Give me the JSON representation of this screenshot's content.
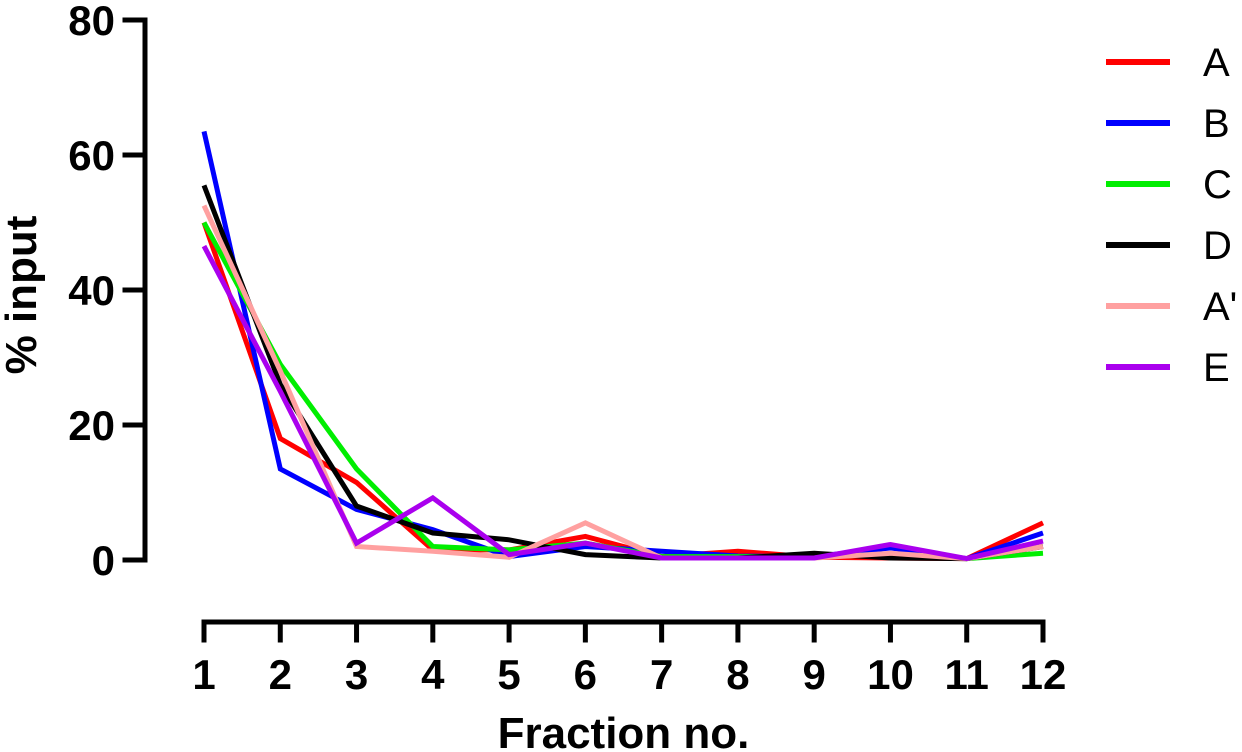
{
  "chart_data": {
    "type": "line",
    "title": "",
    "xlabel": "Fraction no.",
    "ylabel": "% input",
    "x": [
      1,
      2,
      3,
      4,
      5,
      6,
      7,
      8,
      9,
      10,
      11,
      12
    ],
    "x_tick_labels": [
      "1",
      "2",
      "3",
      "4",
      "5",
      "6",
      "7",
      "8",
      "9",
      "10",
      "11",
      "12"
    ],
    "ylim": [
      0,
      80
    ],
    "y_ticks": [
      0,
      20,
      40,
      60,
      80
    ],
    "grid": false,
    "legend_position": "right",
    "series": [
      {
        "name": "A",
        "color": "#ff0000",
        "values": [
          50,
          18,
          11.5,
          1.5,
          1.5,
          3.5,
          0.5,
          1.3,
          0.4,
          0.3,
          0.2,
          5.5
        ]
      },
      {
        "name": "B",
        "color": "#0000ff",
        "values": [
          63.5,
          13.5,
          7.5,
          4.5,
          0.5,
          2,
          1.3,
          0.6,
          0.5,
          1.8,
          0.2,
          4
        ]
      },
      {
        "name": "C",
        "color": "#00ee00",
        "values": [
          50,
          29,
          13.5,
          2,
          1.5,
          2.5,
          0.5,
          0.5,
          0.5,
          0.8,
          0.2,
          1
        ]
      },
      {
        "name": "D",
        "color": "#000000",
        "values": [
          55.5,
          26,
          8,
          4,
          3,
          0.8,
          0.3,
          0.3,
          1,
          0.3,
          0.2,
          2
        ]
      },
      {
        "name": "A'",
        "color": "#ffa0a0",
        "values": [
          52.5,
          28,
          2,
          1.3,
          0.4,
          5.5,
          0.3,
          0.3,
          0.3,
          1,
          0.2,
          2
        ]
      },
      {
        "name": "E",
        "color": "#aa00ee",
        "values": [
          46.5,
          25,
          2.5,
          9.2,
          0.8,
          2.5,
          0.3,
          0.3,
          0.3,
          2.3,
          0.2,
          2.8
        ]
      }
    ]
  }
}
